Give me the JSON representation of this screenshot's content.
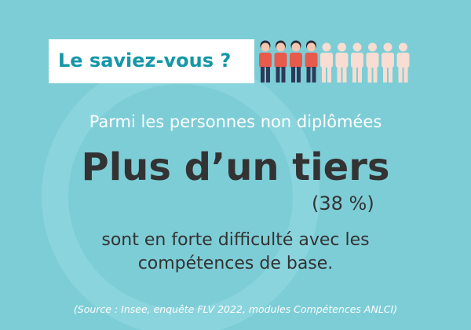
{
  "badge": "Le saviez-vous ?",
  "intro": "Parmi les personnes non diplômées",
  "headline": "Plus d’un tiers",
  "percentage": "(38 %)",
  "body": [
    "sont en forte difficulté avec les",
    "compétences de base."
  ],
  "source": "(Source : Insee, enquête FLV 2022, modules Compétences ANLCI)"
}
